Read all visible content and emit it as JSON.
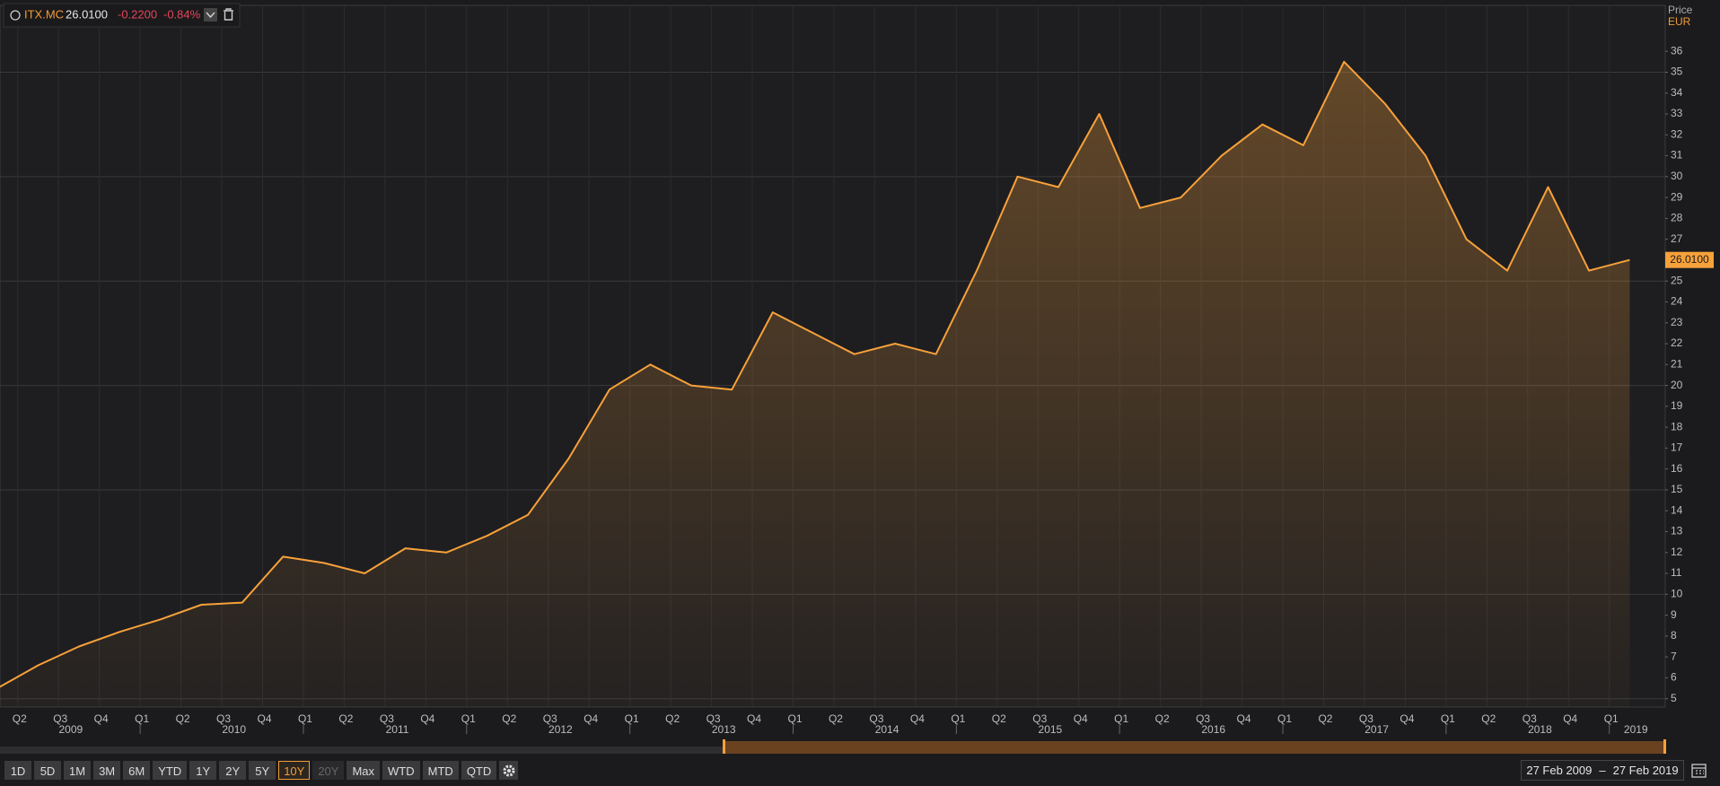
{
  "header": {
    "ticker": "ITX.MC",
    "price": "26.0100",
    "change": "-0.2200",
    "change_pct": "-0.84%"
  },
  "axis_title": "Price",
  "currency": "EUR",
  "chart_data": {
    "type": "area",
    "x": [
      "2009 Q1",
      "2009 Q2",
      "2009 Q3",
      "2009 Q4",
      "2010 Q1",
      "2010 Q2",
      "2010 Q3",
      "2010 Q4",
      "2011 Q1",
      "2011 Q2",
      "2011 Q3",
      "2011 Q4",
      "2012 Q1",
      "2012 Q2",
      "2012 Q3",
      "2012 Q4",
      "2013 Q1",
      "2013 Q2",
      "2013 Q3",
      "2013 Q4",
      "2014 Q1",
      "2014 Q2",
      "2014 Q3",
      "2014 Q4",
      "2015 Q1",
      "2015 Q2",
      "2015 Q3",
      "2015 Q4",
      "2016 Q1",
      "2016 Q2",
      "2016 Q3",
      "2016 Q4",
      "2017 Q1",
      "2017 Q2",
      "2017 Q3",
      "2017 Q4",
      "2018 Q1",
      "2018 Q2",
      "2018 Q3",
      "2018 Q4",
      "2019 Q1"
    ],
    "series": [
      {
        "name": "ITX.MC",
        "color": "#f7a13a",
        "values": [
          5.5,
          6.6,
          7.5,
          8.2,
          8.8,
          9.5,
          9.6,
          11.8,
          11.5,
          11.0,
          12.2,
          12.0,
          12.8,
          13.8,
          16.5,
          19.8,
          21.0,
          20.0,
          19.8,
          23.5,
          22.5,
          21.5,
          22.0,
          21.5,
          25.5,
          30.0,
          29.5,
          33.0,
          28.5,
          29.0,
          31.0,
          32.5,
          31.5,
          35.5,
          33.5,
          31.0,
          27.0,
          25.5,
          29.5,
          25.5,
          26.01
        ]
      }
    ],
    "x_tick_labels": [
      "Q2",
      "Q3",
      "Q4",
      "Q1",
      "Q2",
      "Q3",
      "Q4",
      "Q1",
      "Q2",
      "Q3",
      "Q4",
      "Q1",
      "Q2",
      "Q3",
      "Q4",
      "Q1",
      "Q2",
      "Q3",
      "Q4",
      "Q1",
      "Q2",
      "Q3",
      "Q4",
      "Q1",
      "Q2",
      "Q3",
      "Q4",
      "Q1",
      "Q2",
      "Q3",
      "Q4",
      "Q1",
      "Q2",
      "Q3",
      "Q4",
      "Q1",
      "Q2",
      "Q3",
      "Q4",
      "Q1"
    ],
    "year_labels": [
      2009,
      2010,
      2011,
      2012,
      2013,
      2014,
      2015,
      2016,
      2017,
      2018,
      2019
    ],
    "ylim": [
      4.6,
      38.2
    ],
    "yticks": [
      5,
      6,
      7,
      8,
      9,
      10,
      11,
      12,
      13,
      14,
      15,
      16,
      17,
      18,
      19,
      20,
      21,
      22,
      23,
      24,
      25,
      26,
      27,
      28,
      29,
      30,
      31,
      32,
      33,
      34,
      35,
      36
    ],
    "ygrid": [
      5,
      10,
      15,
      20,
      25,
      30,
      35
    ],
    "grid": true
  },
  "toolbar": {
    "ranges": [
      "1D",
      "5D",
      "1M",
      "3M",
      "6M",
      "YTD",
      "1Y",
      "2Y",
      "5Y",
      "10Y",
      "20Y",
      "Max",
      "WTD",
      "MTD",
      "QTD"
    ],
    "selected": "10Y",
    "disabled": [
      "20Y"
    ]
  },
  "date_range": {
    "from": "27 Feb 2009",
    "to": "27 Feb 2019"
  }
}
